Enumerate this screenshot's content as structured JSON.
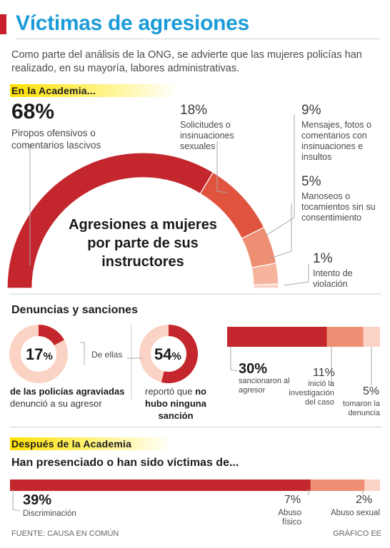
{
  "header": {
    "title": "Víctimas de agresiones",
    "intro": "Como parte del análisis de la ONG, se advierte que las mujeres policías han realizado, en su mayoría, labores administrativas."
  },
  "academy": {
    "section_label": "En la Academia...",
    "center_label": "Agresiones a mujeres por parte de sus instructores",
    "items": [
      {
        "pct": "68%",
        "label": "Piropos ofensivos o comentarios lascivos"
      },
      {
        "pct": "18%",
        "label": "Solicitudes o insinuaciones sexuales"
      },
      {
        "pct": "9%",
        "label": "Mensajes, fotos o comentarios con insinuaciones e insultos"
      },
      {
        "pct": "5%",
        "label": "Manoseos o tocamientos sin su consentimiento"
      },
      {
        "pct": "1%",
        "label": "Intento de violación"
      }
    ]
  },
  "denuncias": {
    "heading": "Denuncias y sanciones",
    "donut1": {
      "value": "17",
      "unit": "%",
      "caption_bold": "de las policías agraviadas",
      "caption_rest": "denunció a su agresor"
    },
    "de_ellas": "De ellas",
    "donut2": {
      "value": "54",
      "unit": "%",
      "caption_rest": "reportó que",
      "caption_bold": "no hubo ninguna sanción"
    },
    "bar": [
      {
        "pct": "30%",
        "label": "sancionaron al agresor"
      },
      {
        "pct": "11%",
        "label": "inició la investigación del caso"
      },
      {
        "pct": "5%",
        "label": "tomaron la denuncia"
      }
    ]
  },
  "after": {
    "section_label": "Después de la Academia",
    "subheading": "Han presenciado o han sido víctimas de...",
    "bar": [
      {
        "pct": "39%",
        "label": "Discriminación"
      },
      {
        "pct": "7%",
        "label": "Abuso físico"
      },
      {
        "pct": "2%",
        "label": "Abuso sexual"
      }
    ]
  },
  "footer": {
    "source": "FUENTE: CAUSA EN COMÚN",
    "credit": "GRÁFICO EE"
  },
  "colors": {
    "dark_red": "#c3262d",
    "red": "#e0543f",
    "salmon": "#ee8f73",
    "light_salmon": "#f6b49c",
    "pale": "#fbd3c4",
    "title_blue": "#1b9bd7"
  },
  "chart_data": [
    {
      "type": "pie",
      "title": "Agresiones a mujeres por parte de sus instructores",
      "categories": [
        "Piropos ofensivos o comentarios lascivos",
        "Solicitudes o insinuaciones sexuales",
        "Mensajes, fotos o comentarios con insinuaciones e insultos",
        "Manoseos o tocamientos sin su consentimiento",
        "Intento de violación"
      ],
      "values": [
        68,
        18,
        9,
        5,
        1
      ]
    },
    {
      "type": "pie",
      "categories": [
        "de las policías agraviadas denunció a su agresor"
      ],
      "values": [
        17
      ]
    },
    {
      "type": "pie",
      "categories": [
        "reportó que no hubo ninguna sanción"
      ],
      "values": [
        54
      ]
    },
    {
      "type": "bar",
      "categories": [
        "sancionaron al agresor",
        "inició la investigación del caso",
        "tomaron la denuncia"
      ],
      "values": [
        30,
        11,
        5
      ]
    },
    {
      "type": "bar",
      "title": "Han presenciado o han sido víctimas de...",
      "categories": [
        "Discriminación",
        "Abuso físico",
        "Abuso sexual"
      ],
      "values": [
        39,
        7,
        2
      ]
    }
  ]
}
